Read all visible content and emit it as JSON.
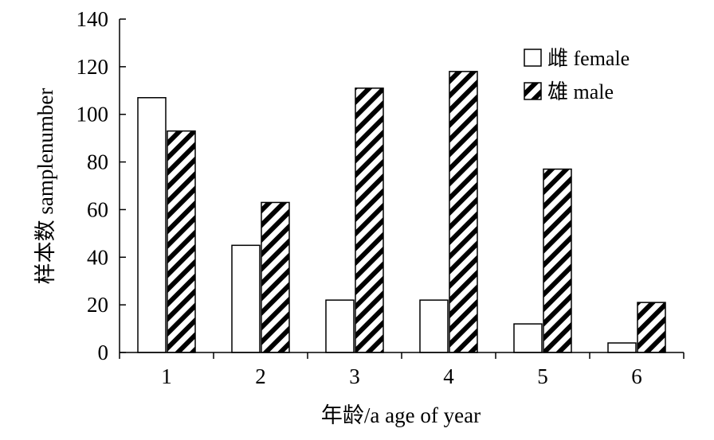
{
  "chart_data": {
    "type": "bar",
    "categories": [
      "1",
      "2",
      "3",
      "4",
      "5",
      "6"
    ],
    "series": [
      {
        "name": "雌 female",
        "values": [
          107,
          45,
          22,
          22,
          12,
          4
        ],
        "fill": "#ffffff"
      },
      {
        "name": "雄 male",
        "values": [
          93,
          63,
          111,
          118,
          77,
          21
        ],
        "fill": "hatched"
      }
    ],
    "xlabel": "年龄/a age of year",
    "ylabel": "样本数 samplenumber",
    "ylim": [
      0,
      140
    ],
    "yticks": [
      0,
      20,
      40,
      60,
      80,
      100,
      120,
      140
    ],
    "grid": false,
    "legend_position": "top-right",
    "colors": {
      "axis": "#000000",
      "bar_stroke": "#000000",
      "background": "#ffffff"
    }
  }
}
